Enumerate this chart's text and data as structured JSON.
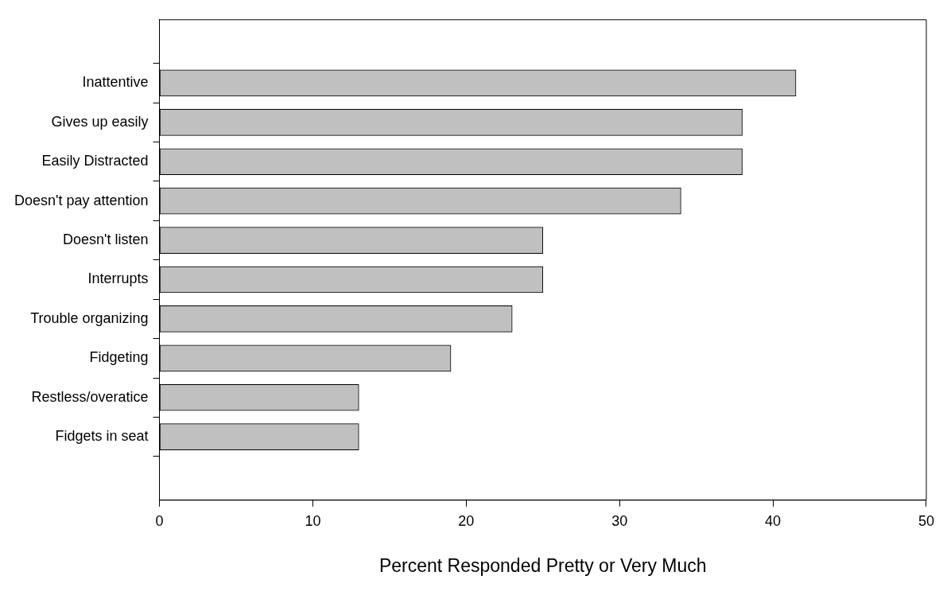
{
  "chart_data": {
    "type": "bar",
    "orientation": "horizontal",
    "xlabel": "Percent Responded Pretty or Very Much",
    "categories": [
      "Inattentive",
      "Gives up easily",
      "Easily Distracted",
      "Doesn't pay attention",
      "Doesn't listen",
      "Interrupts",
      "Trouble organizing",
      "Fidgeting",
      "Restless/overatice",
      "Fidgets in seat"
    ],
    "values": [
      41.5,
      38,
      38,
      34,
      25,
      25,
      23,
      19,
      13,
      13
    ],
    "color": "#c0c0c0",
    "xlim": [
      0,
      50
    ],
    "xticks": [
      0,
      10,
      20,
      30,
      40,
      50
    ],
    "grid": false,
    "legend": false
  }
}
